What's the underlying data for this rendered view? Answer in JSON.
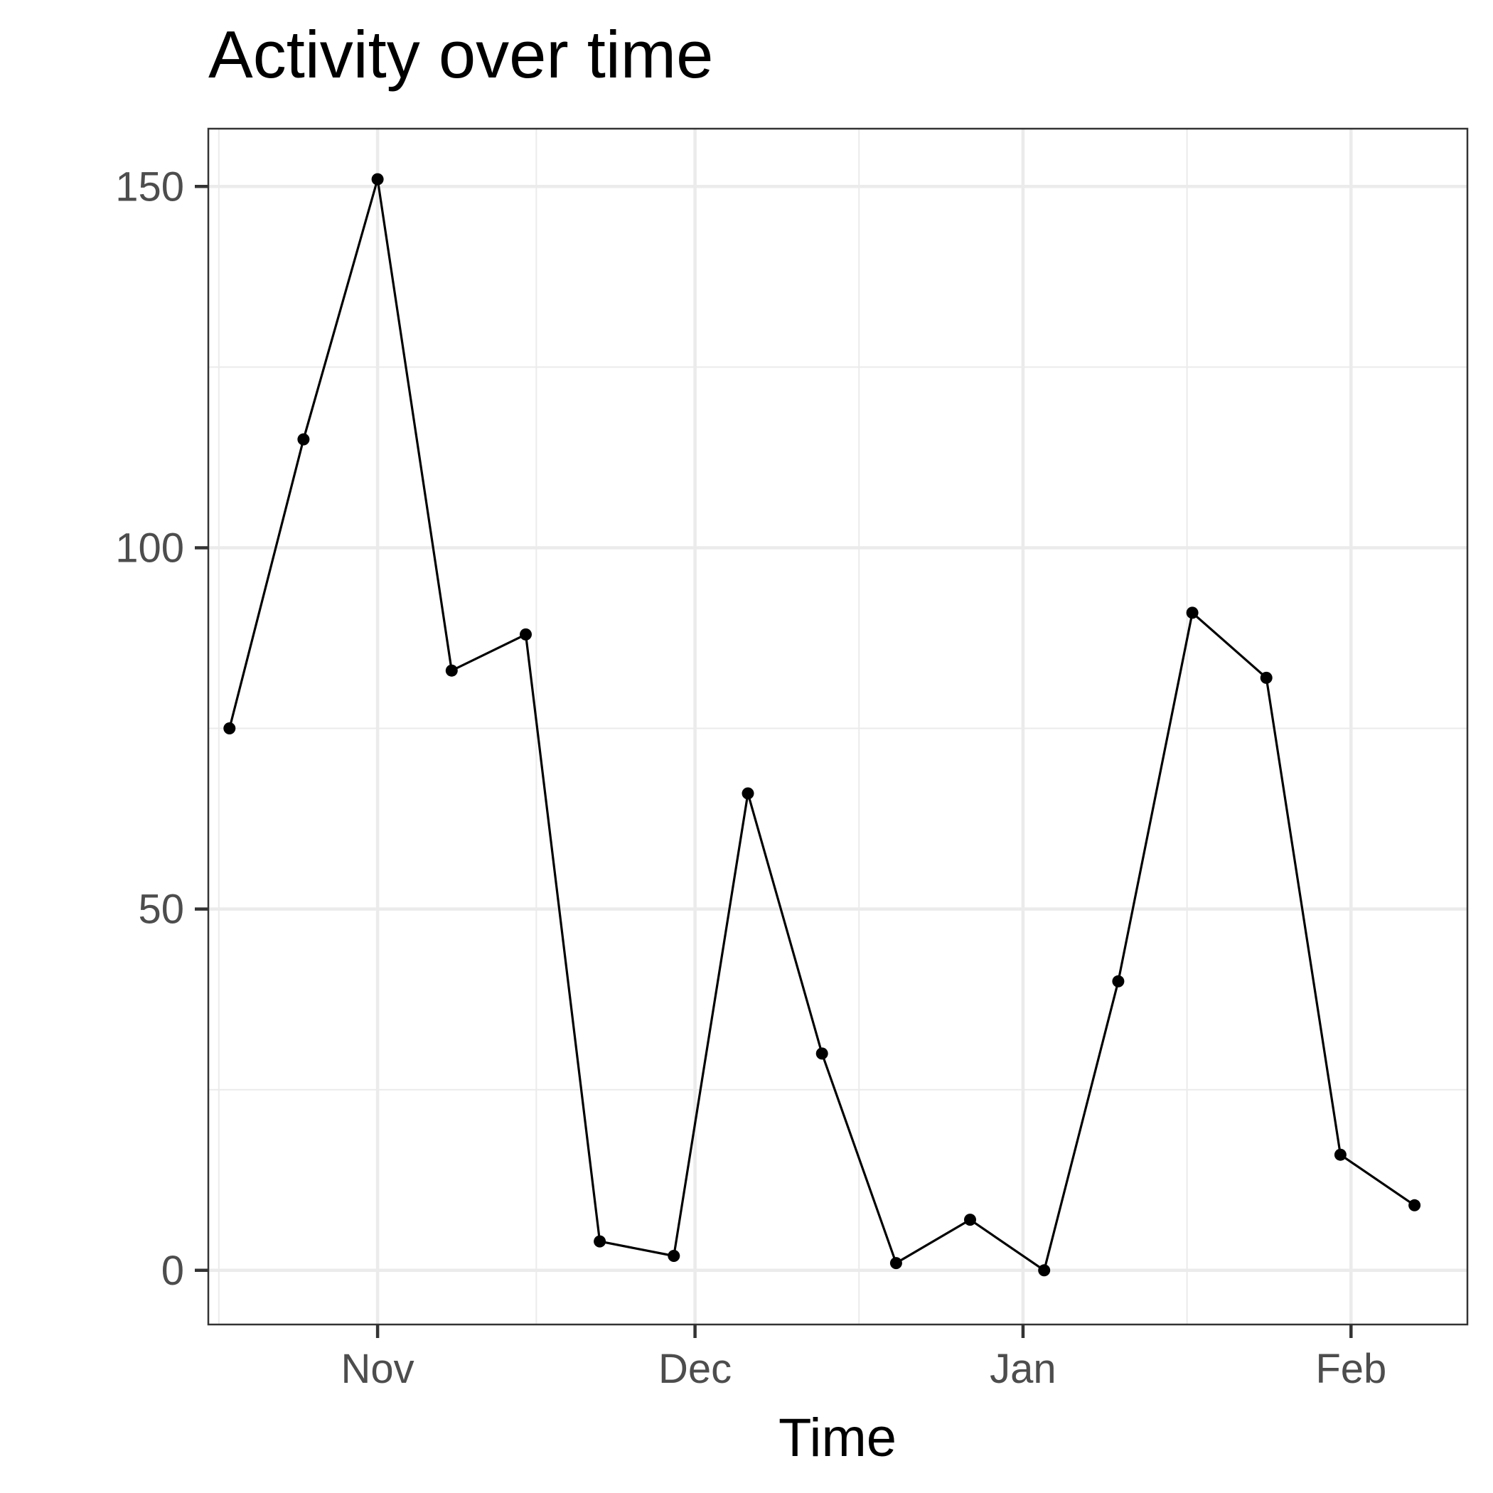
{
  "chart_data": {
    "type": "line",
    "title": "Activity over time",
    "xlabel": "Time",
    "ylabel": "",
    "x_axis_type": "date",
    "x": [
      "2024-10-18",
      "2024-10-25",
      "2024-11-01",
      "2024-11-08",
      "2024-11-15",
      "2024-11-22",
      "2024-11-29",
      "2024-12-06",
      "2024-12-13",
      "2024-12-20",
      "2024-12-27",
      "2025-01-03",
      "2025-01-10",
      "2025-01-17",
      "2025-01-24",
      "2025-01-31",
      "2025-02-07"
    ],
    "series": [
      {
        "values": [
          75,
          115,
          151,
          83,
          88,
          4,
          2,
          66,
          30,
          1,
          7,
          0,
          40,
          91,
          82,
          16,
          9
        ]
      }
    ],
    "xlim": [
      "2024-10-16",
      "2025-02-12"
    ],
    "ylim": [
      -7.5,
      158
    ],
    "y_ticks": [
      0,
      50,
      100,
      150
    ],
    "y_tick_labels": [
      "0",
      "50",
      "100",
      "150"
    ],
    "x_ticks": [
      "2024-11-01",
      "2024-12-01",
      "2025-01-01",
      "2025-02-01"
    ],
    "x_tick_labels": [
      "Nov",
      "Dec",
      "Jan",
      "Feb"
    ],
    "grid": true,
    "legend": "none",
    "colors": {
      "line": "#000000",
      "points": "#000000",
      "grid": "#ebebeb",
      "panel_border": "#333333",
      "tick_text": "#4d4d4d"
    }
  }
}
